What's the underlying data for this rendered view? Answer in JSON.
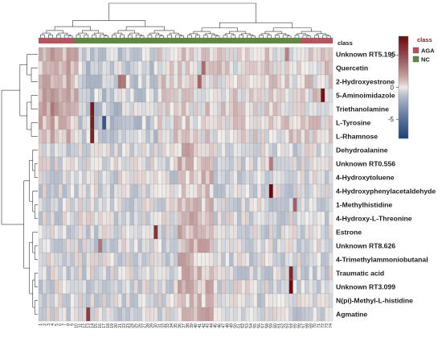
{
  "chart_data": {
    "type": "heatmap",
    "title": "",
    "annotation_label": "class",
    "legend": {
      "title": "class",
      "groups": [
        {
          "name": "AGA",
          "color": "#b5545c"
        },
        {
          "name": "NC",
          "color": "#5d8a3c"
        }
      ]
    },
    "color_scale": {
      "range": [
        -8,
        8
      ],
      "ticks": [
        5,
        0,
        -5
      ],
      "colors": {
        "low": "#1d3f7a",
        "mid": "#f4f1ee",
        "high": "#6b0a10"
      }
    },
    "rows": [
      "Unknown RT5.195",
      "Quercetin",
      "2-Hydroxyestrone",
      "5-Aminoimidazole",
      "Triethanolamine",
      "L-Tyrosine",
      "L-Rhamnose",
      "Dehydroalanine",
      "Unknown RT0.556",
      "4-Hydroxytoluene",
      "4-Hydroxyphenylacetaldehyde",
      "1-Methylhistidine",
      "4-Hydroxy-L-Threonine",
      "Estrone",
      "Unknown RT8.626",
      "4-Trimethylammoniobutanal",
      "Traumatic acid",
      "Unknown RT3.099",
      "N(pi)-Methyl-L-histidine",
      "Agmatine"
    ],
    "column_count": 74,
    "columns_aga_blocks": [
      [
        0,
        8
      ],
      [
        66,
        73
      ]
    ]
  }
}
